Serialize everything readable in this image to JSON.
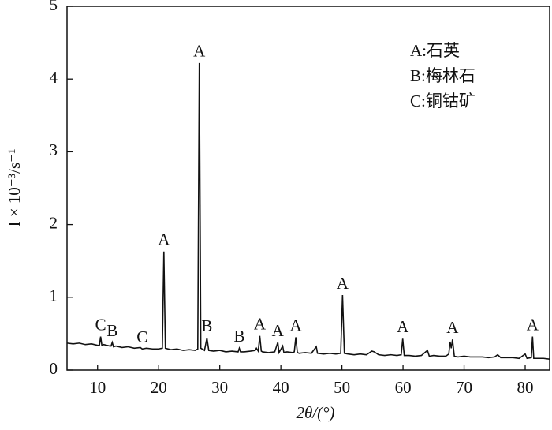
{
  "chart_data": {
    "type": "line",
    "xlabel": "2θ/(°)",
    "ylabel": "I × 10⁻³/s⁻¹",
    "legend_lines": [
      "A:石英",
      "B:梅林石",
      "C:铜钴矿"
    ],
    "color": "#111111",
    "xlim": [
      5,
      84
    ],
    "xticks": [
      10,
      20,
      30,
      40,
      50,
      60,
      70,
      80
    ],
    "ylim": [
      0,
      5
    ],
    "yticks": [
      0,
      1,
      2,
      3,
      4,
      5
    ],
    "x": [
      5,
      6,
      7,
      8,
      9,
      10,
      10.3,
      10.5,
      10.7,
      11,
      12,
      12.2,
      12.4,
      12.6,
      13,
      14,
      15,
      16,
      17,
      17.3,
      18,
      19,
      20,
      20.6,
      20.85,
      21.1,
      22,
      23,
      24,
      25,
      26,
      26.4,
      26.65,
      26.9,
      27.5,
      27.9,
      28.2,
      29,
      30,
      31,
      32,
      33,
      33.2,
      33.4,
      34,
      35,
      35.8,
      36,
      36.3,
      36.55,
      36.8,
      37,
      38,
      39,
      39.5,
      39.7,
      40.3,
      40.5,
      41,
      42,
      42.2,
      42.45,
      42.7,
      43,
      44,
      45,
      45.8,
      46,
      47,
      48,
      49,
      49.8,
      50.1,
      50.4,
      51,
      52,
      53,
      54,
      54.9,
      55.3,
      56,
      57,
      58,
      59,
      59.7,
      59.95,
      60.2,
      61,
      62,
      63,
      64,
      64.3,
      65,
      66,
      67,
      67.5,
      67.7,
      67.9,
      68.1,
      68.4,
      69,
      70,
      71,
      72,
      73,
      74,
      75,
      75.5,
      76,
      77,
      78,
      79,
      80,
      80.3,
      81,
      81.2,
      81.4,
      82,
      83,
      84
    ],
    "values": [
      0.37,
      0.36,
      0.37,
      0.35,
      0.36,
      0.34,
      0.34,
      0.46,
      0.34,
      0.35,
      0.33,
      0.33,
      0.38,
      0.32,
      0.33,
      0.31,
      0.32,
      0.3,
      0.31,
      0.29,
      0.3,
      0.29,
      0.29,
      0.3,
      1.63,
      0.3,
      0.28,
      0.29,
      0.27,
      0.28,
      0.27,
      0.29,
      4.22,
      0.3,
      0.27,
      0.44,
      0.27,
      0.26,
      0.27,
      0.25,
      0.26,
      0.25,
      0.3,
      0.25,
      0.25,
      0.26,
      0.27,
      0.3,
      0.26,
      0.47,
      0.26,
      0.25,
      0.24,
      0.25,
      0.38,
      0.24,
      0.33,
      0.24,
      0.25,
      0.24,
      0.25,
      0.45,
      0.24,
      0.23,
      0.24,
      0.23,
      0.32,
      0.23,
      0.22,
      0.23,
      0.22,
      0.23,
      1.03,
      0.23,
      0.22,
      0.21,
      0.22,
      0.21,
      0.26,
      0.25,
      0.21,
      0.2,
      0.21,
      0.2,
      0.21,
      0.43,
      0.2,
      0.2,
      0.19,
      0.2,
      0.27,
      0.19,
      0.2,
      0.19,
      0.19,
      0.22,
      0.39,
      0.3,
      0.42,
      0.19,
      0.18,
      0.19,
      0.18,
      0.18,
      0.18,
      0.17,
      0.18,
      0.21,
      0.17,
      0.17,
      0.17,
      0.16,
      0.22,
      0.16,
      0.17,
      0.46,
      0.16,
      0.16,
      0.16,
      0.15
    ],
    "annotations": [
      {
        "text": "C",
        "x": 10.5,
        "y": 0.46
      },
      {
        "text": "B",
        "x": 12.4,
        "y": 0.38
      },
      {
        "text": "C",
        "x": 17.3,
        "y": 0.29
      },
      {
        "text": "A",
        "x": 20.85,
        "y": 1.63
      },
      {
        "text": "A",
        "x": 26.65,
        "y": 4.22
      },
      {
        "text": "B",
        "x": 27.9,
        "y": 0.44
      },
      {
        "text": "B",
        "x": 33.2,
        "y": 0.3
      },
      {
        "text": "A",
        "x": 36.55,
        "y": 0.47
      },
      {
        "text": "A",
        "x": 39.5,
        "y": 0.38
      },
      {
        "text": "A",
        "x": 42.45,
        "y": 0.45
      },
      {
        "text": "A",
        "x": 50.1,
        "y": 1.03
      },
      {
        "text": "A",
        "x": 59.95,
        "y": 0.43
      },
      {
        "text": "A",
        "x": 68.1,
        "y": 0.42
      },
      {
        "text": "A",
        "x": 81.2,
        "y": 0.46
      }
    ]
  }
}
